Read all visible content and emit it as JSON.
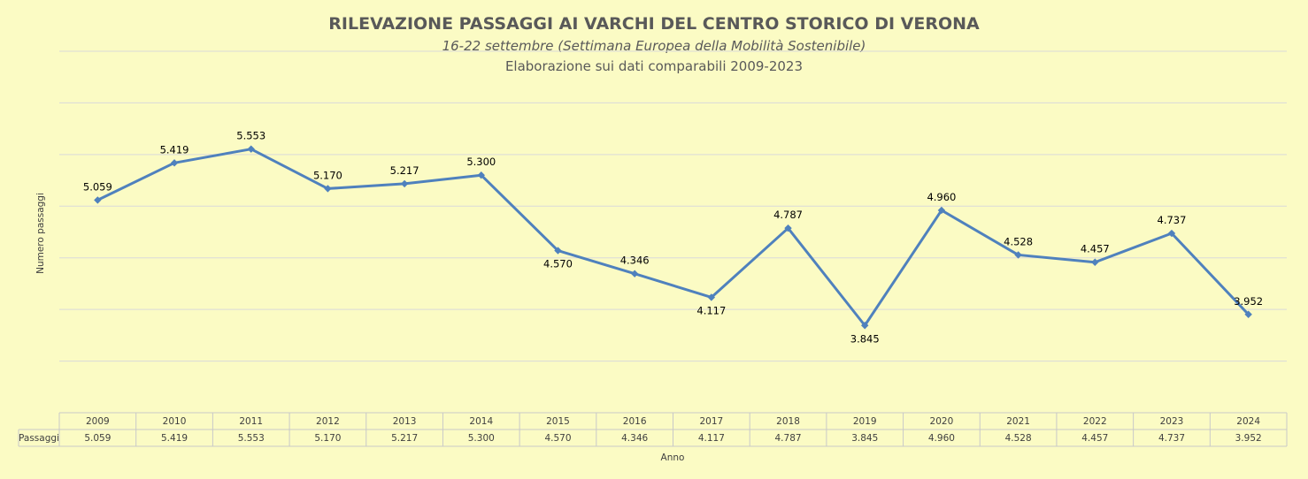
{
  "chart_data": {
    "type": "line",
    "title": "RILEVAZIONE PASSAGGI AI VARCHI DEL CENTRO STORICO DI VERONA",
    "subtitle": "16-22 settembre (Settimana Europea della Mobilità Sostenibile)",
    "subtitle2": "Elaborazione sui dati comparabili 2009-2023",
    "xlabel": "Anno",
    "ylabel": "Numero passaggi",
    "categories": [
      "2009",
      "2010",
      "2011",
      "2012",
      "2013",
      "2014",
      "2015",
      "2016",
      "2017",
      "2018",
      "2019",
      "2020",
      "2021",
      "2022",
      "2023",
      "2024"
    ],
    "series": [
      {
        "name": "Passaggi",
        "values": [
          5059,
          5419,
          5553,
          5170,
          5217,
          5300,
          4570,
          4346,
          4117,
          4787,
          3845,
          4960,
          4528,
          4457,
          4737,
          3952
        ],
        "labels": [
          "5.059",
          "5.419",
          "5.553",
          "5.170",
          "5.217",
          "5.300",
          "4.570",
          "4.346",
          "4.117",
          "4.787",
          "3.845",
          "4.960",
          "4.528",
          "4.457",
          "4.737",
          "3.952"
        ]
      }
    ],
    "label_positions": [
      "above",
      "above",
      "above",
      "above",
      "above",
      "above",
      "below",
      "above",
      "below",
      "above",
      "below",
      "above",
      "above",
      "above",
      "above",
      "above"
    ],
    "ylim": [
      3000,
      6500
    ],
    "ytick_step": 500,
    "grid": true,
    "legend": "none",
    "data_table": true,
    "colors": {
      "series": "#4f81bd",
      "background": "#fbfbc4",
      "grid": "#d9d9d9"
    }
  }
}
